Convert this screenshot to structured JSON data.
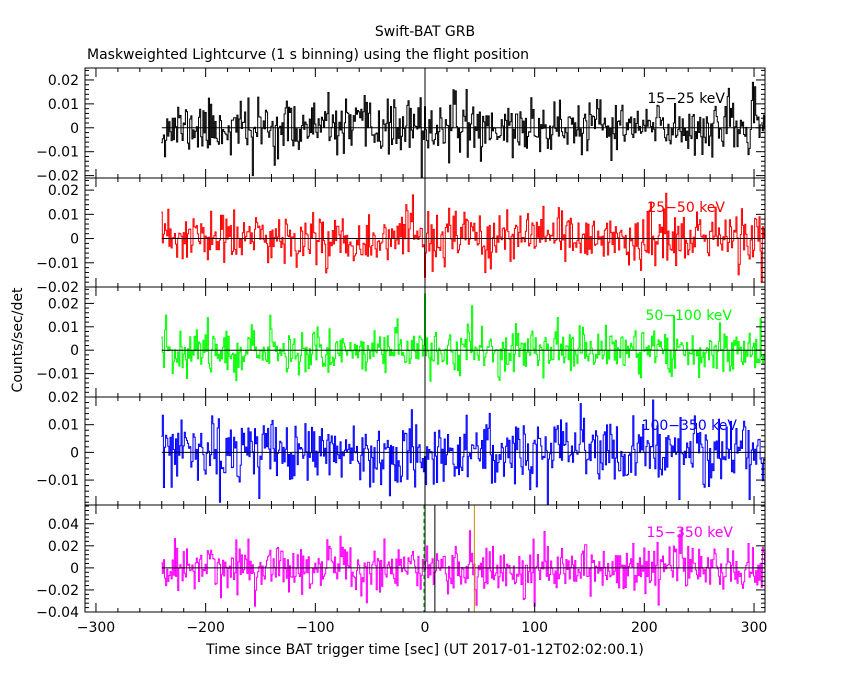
{
  "chart_data": {
    "type": "line",
    "title": "Swift-BAT GRB",
    "subtitle": "Maskweighted Lightcurve (1 s binning) using the flight position",
    "xlabel": "Time since BAT trigger time [sec] (UT 2017-01-12T02:02:00.1)",
    "ylabel": "Counts/sec/det",
    "xlim": [
      -310,
      310
    ],
    "x_ticks": [
      -300,
      -200,
      -100,
      0,
      100,
      200,
      300
    ],
    "x_tick_labels": [
      "−300",
      "−200",
      "−100",
      "0",
      "100",
      "200",
      "300"
    ],
    "data_x_range": [
      -240,
      310
    ],
    "bin_width_s": 1,
    "markers": [
      {
        "name": "trigger",
        "x": 0,
        "color": "#000000",
        "style": "solid"
      },
      {
        "name": "t-start",
        "x": -1,
        "color": "#00aa00",
        "style": "dashed"
      },
      {
        "name": "t-stop",
        "x": 9,
        "color": "#000000",
        "style": "solid"
      },
      {
        "name": "t90-end",
        "x": 45,
        "color": "#cc8800",
        "style": "solid"
      }
    ],
    "panels": [
      {
        "name": "15-25",
        "band_label": "15−25 keV",
        "color": "#000000",
        "ylim": [
          -0.021,
          0.025
        ],
        "y_ticks": [
          0.02,
          0.01,
          0,
          -0.01,
          -0.02
        ],
        "y_tick_labels": [
          "0.02",
          "0.01",
          "0",
          "−0.01",
          "−0.02"
        ],
        "sigma": 0.0055,
        "seed": 11,
        "spikes": [
          {
            "x": -157,
            "v": 0.019
          },
          {
            "x": -157,
            "v": -0.02
          },
          {
            "x": -3,
            "v": -0.022
          },
          {
            "x": 38,
            "v": 0.016
          }
        ]
      },
      {
        "name": "25-50",
        "band_label": "25−50 keV",
        "color": "#ff0000",
        "ylim": [
          -0.02,
          0.025
        ],
        "y_ticks": [
          0.02,
          0.01,
          0,
          -0.01,
          -0.02
        ],
        "y_tick_labels": [
          "0.02",
          "0.01",
          "0",
          "−0.01",
          "−0.02"
        ],
        "sigma": 0.0055,
        "seed": 23,
        "spikes": [
          {
            "x": 0,
            "v": 0.022
          },
          {
            "x": 0,
            "v": -0.016
          },
          {
            "x": 307,
            "v": -0.018
          }
        ]
      },
      {
        "name": "50-100",
        "band_label": "50−100 keV",
        "color": "#00ff00",
        "ylim": [
          -0.02,
          0.027
        ],
        "y_ticks": [
          0.02,
          0.01,
          0,
          -0.01
        ],
        "y_tick_labels": [
          "0.02",
          "0.01",
          "0",
          "−0.01"
        ],
        "sigma": 0.0048,
        "seed": 37,
        "spikes": [
          {
            "x": 0,
            "v": 0.024
          },
          {
            "x": 43,
            "v": 0.019
          },
          {
            "x": -236,
            "v": 0.015
          }
        ]
      },
      {
        "name": "100-350",
        "band_label": "100−350 keV",
        "color": "#0000ff",
        "ylim": [
          -0.019,
          0.02
        ],
        "y_ticks": [
          0.02,
          0.01,
          0,
          -0.01
        ],
        "y_tick_labels": [
          "0.02",
          "0.01",
          "0",
          "−0.01"
        ],
        "sigma": 0.0058,
        "seed": 53,
        "spikes": [
          {
            "x": -187,
            "v": -0.018
          },
          {
            "x": 232,
            "v": -0.017
          },
          {
            "x": 296,
            "v": -0.017
          }
        ]
      },
      {
        "name": "15-350",
        "band_label": "15−350 keV",
        "color": "#ff00ff",
        "ylim": [
          -0.04,
          0.057
        ],
        "y_ticks": [
          0.04,
          0.02,
          0,
          -0.02,
          -0.04
        ],
        "y_tick_labels": [
          "0.04",
          "0.02",
          "0",
          "−0.02",
          "−0.04"
        ],
        "sigma": 0.0115,
        "seed": 71,
        "spikes": [
          {
            "x": -186,
            "v": 0.043
          },
          {
            "x": -186,
            "v": -0.027
          },
          {
            "x": 109,
            "v": 0.033
          }
        ]
      }
    ]
  }
}
